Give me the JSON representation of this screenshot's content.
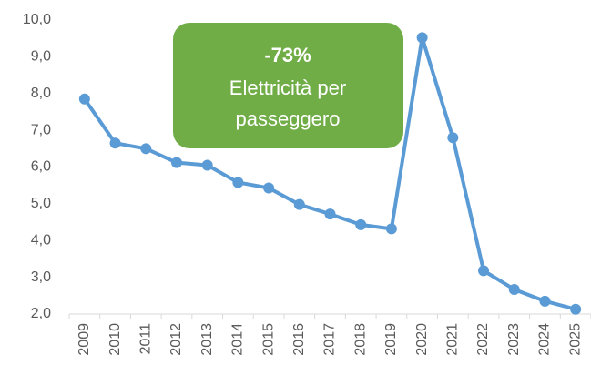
{
  "chart_data": {
    "type": "line",
    "annotation": {
      "headline": "-73%",
      "lines": [
        "Elettricità per",
        "passeggero"
      ],
      "color": "#70ad47"
    },
    "categories": [
      "2009",
      "2010",
      "2011",
      "2012",
      "2013",
      "2014",
      "2015",
      "2016",
      "2017",
      "2018",
      "2019",
      "2020",
      "2021",
      "2022",
      "2023",
      "2024",
      "2025"
    ],
    "series": [
      {
        "color": "#5b9bd5",
        "values": [
          7.85,
          6.65,
          6.5,
          6.12,
          6.05,
          5.58,
          5.43,
          4.98,
          4.72,
          4.43,
          4.32,
          9.52,
          6.8,
          3.18,
          2.67,
          2.35,
          2.13
        ]
      }
    ],
    "ylim": [
      2,
      10
    ],
    "yticks": [
      {
        "value": 2,
        "label": "2,0"
      },
      {
        "value": 3,
        "label": "3,0"
      },
      {
        "value": 4,
        "label": "4,0"
      },
      {
        "value": 5,
        "label": "5,0"
      },
      {
        "value": 6,
        "label": "6,0"
      },
      {
        "value": 7,
        "label": "7,0"
      },
      {
        "value": 8,
        "label": "8,0"
      },
      {
        "value": 9,
        "label": "9,0"
      },
      {
        "value": 10,
        "label": "10,0"
      }
    ],
    "grid": false
  }
}
